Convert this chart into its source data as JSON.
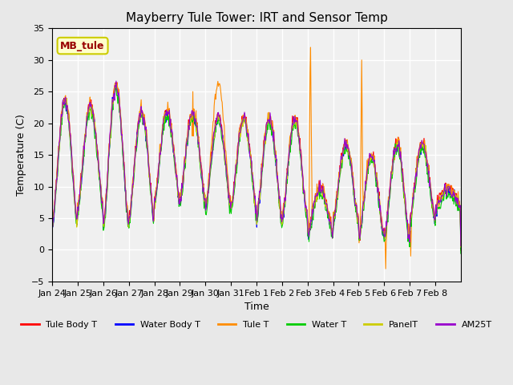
{
  "title": "Mayberry Tule Tower: IRT and Sensor Temp",
  "xlabel": "Time",
  "ylabel": "Temperature (C)",
  "ylim": [
    -5,
    35
  ],
  "yticks": [
    -5,
    0,
    5,
    10,
    15,
    20,
    25,
    30,
    35
  ],
  "xtick_labels": [
    "Jan 24",
    "Jan 25",
    "Jan 26",
    "Jan 27",
    "Jan 28",
    "Jan 29",
    "Jan 30",
    "Jan 31",
    "Feb 1",
    "Feb 2",
    "Feb 3",
    "Feb 4",
    "Feb 5",
    "Feb 6",
    "Feb 7",
    "Feb 8"
  ],
  "background_color": "#e8e8e8",
  "plot_bg_color": "#f0f0f0",
  "grid_color": "#ffffff",
  "legend_items": [
    {
      "label": "Tule Body T",
      "color": "#ff0000"
    },
    {
      "label": "Water Body T",
      "color": "#0000ff"
    },
    {
      "label": "Tule T",
      "color": "#ff8c00"
    },
    {
      "label": "Water T",
      "color": "#00cc00"
    },
    {
      "label": "PanelT",
      "color": "#cccc00"
    },
    {
      "label": "AM25T",
      "color": "#9900cc"
    }
  ],
  "annotation_text": "MB_tule",
  "annotation_bg": "#ffffcc",
  "annotation_border": "#cccc00",
  "annotation_text_color": "#990000",
  "n_days": 16,
  "pts_per_day": 48,
  "daily_min": [
    4,
    7,
    4,
    5,
    8,
    8,
    7,
    7,
    5,
    5,
    3,
    5,
    2,
    2,
    5,
    7
  ],
  "daily_max": [
    24,
    23,
    26,
    22,
    22,
    22,
    21,
    21,
    21,
    21,
    10,
    17,
    15,
    17,
    17,
    10
  ]
}
